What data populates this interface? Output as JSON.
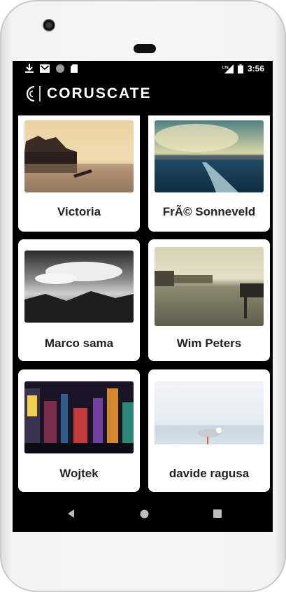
{
  "status": {
    "time": "3:56",
    "network": "LTE"
  },
  "app": {
    "title": "CORUSCATE"
  },
  "cards": [
    {
      "name": "Victoria"
    },
    {
      "name": "FrÃ© Sonneveld"
    },
    {
      "name": "Marco sama"
    },
    {
      "name": "Wim Peters"
    },
    {
      "name": "Wojtek"
    },
    {
      "name": "davide ragusa"
    }
  ],
  "icons": {
    "status_left": [
      "download-icon",
      "gmail-icon",
      "circle-icon",
      "sd-card-icon"
    ],
    "status_right": [
      "lte-signal-icon",
      "battery-icon"
    ],
    "nav": [
      "back-icon",
      "home-icon",
      "recents-icon"
    ]
  },
  "colors": {
    "screen_bg": "#000000",
    "card_bg": "#ffffff",
    "label": "#222222"
  }
}
